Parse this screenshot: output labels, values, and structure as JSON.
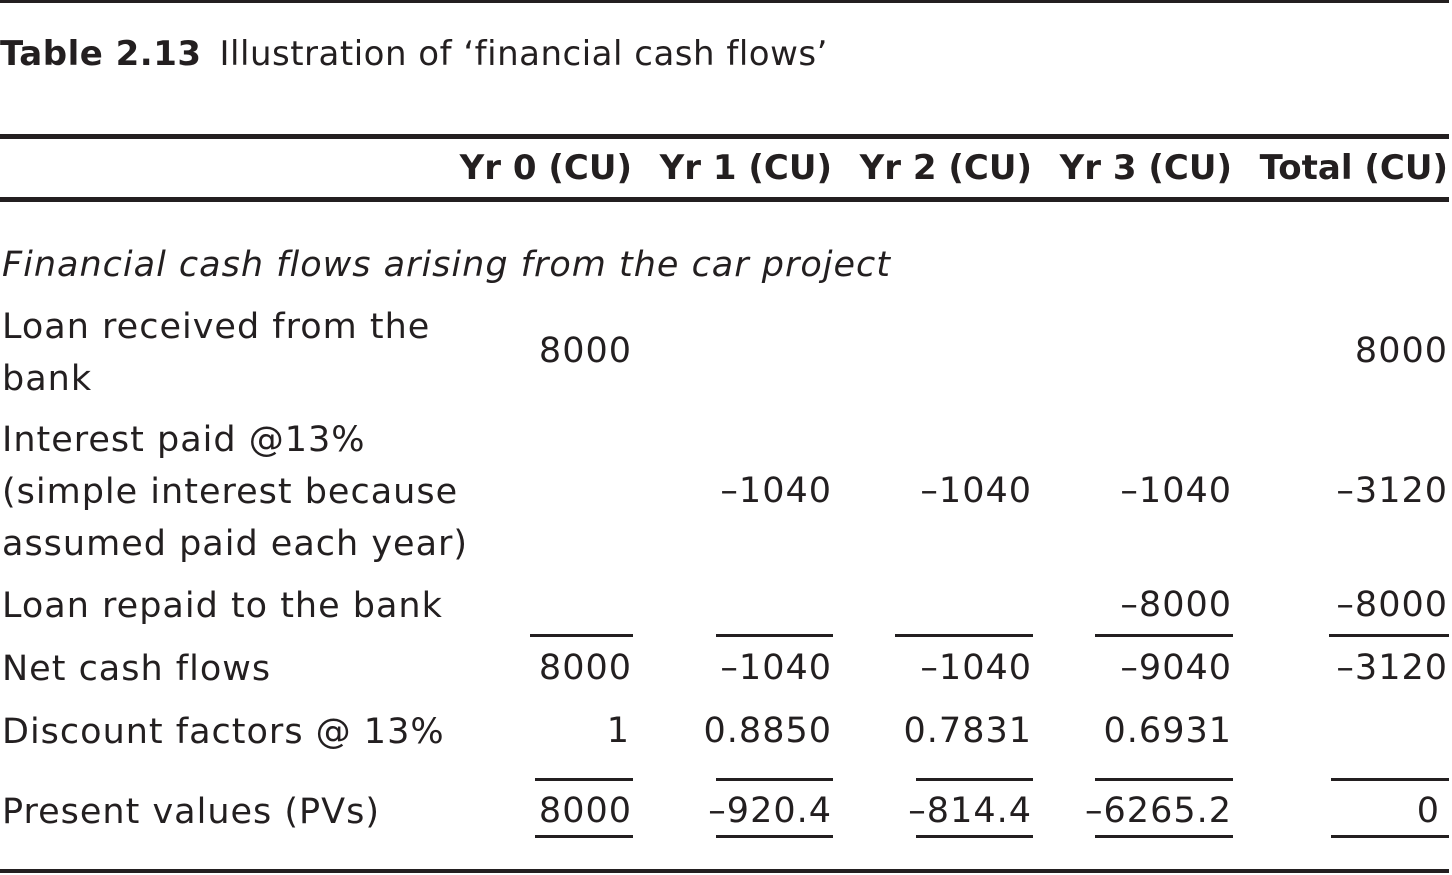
{
  "caption": {
    "number": "Table 2.13",
    "title": "Illustration of ‘financial cash flows’"
  },
  "table": {
    "headers": [
      "",
      "Yr 0 (CU)",
      "Yr 1 (CU)",
      "Yr 2 (CU)",
      "Yr 3 (CU)",
      "Total (CU)"
    ],
    "section_label": "Financial cash flows arising from the car project",
    "rows": [
      {
        "label_lines": [
          "Loan received from the",
          "bank"
        ],
        "values": [
          "8000",
          "",
          "",
          "",
          "8000"
        ]
      },
      {
        "label_lines": [
          "Interest paid @13%",
          "(simple interest because",
          "assumed paid each year)"
        ],
        "values": [
          "",
          "–1040",
          "–1040",
          "–1040",
          "–3120"
        ]
      },
      {
        "label_lines": [
          "Loan repaid to the bank"
        ],
        "values": [
          "",
          "",
          "",
          "–8000",
          "–8000"
        ]
      },
      {
        "label_lines": [
          "Net cash flows"
        ],
        "values": [
          "8000",
          "–1040",
          "–1040",
          "–9040",
          "–3120"
        ]
      },
      {
        "label_lines": [
          "Discount factors @ 13%"
        ],
        "values": [
          "1",
          "0.8850",
          "0.7831",
          "0.6931",
          ""
        ]
      },
      {
        "label_lines": [
          "Present values (PVs)"
        ],
        "values": [
          "8000",
          "–920.4",
          "–814.4",
          "–6265.2",
          "0"
        ]
      }
    ]
  }
}
